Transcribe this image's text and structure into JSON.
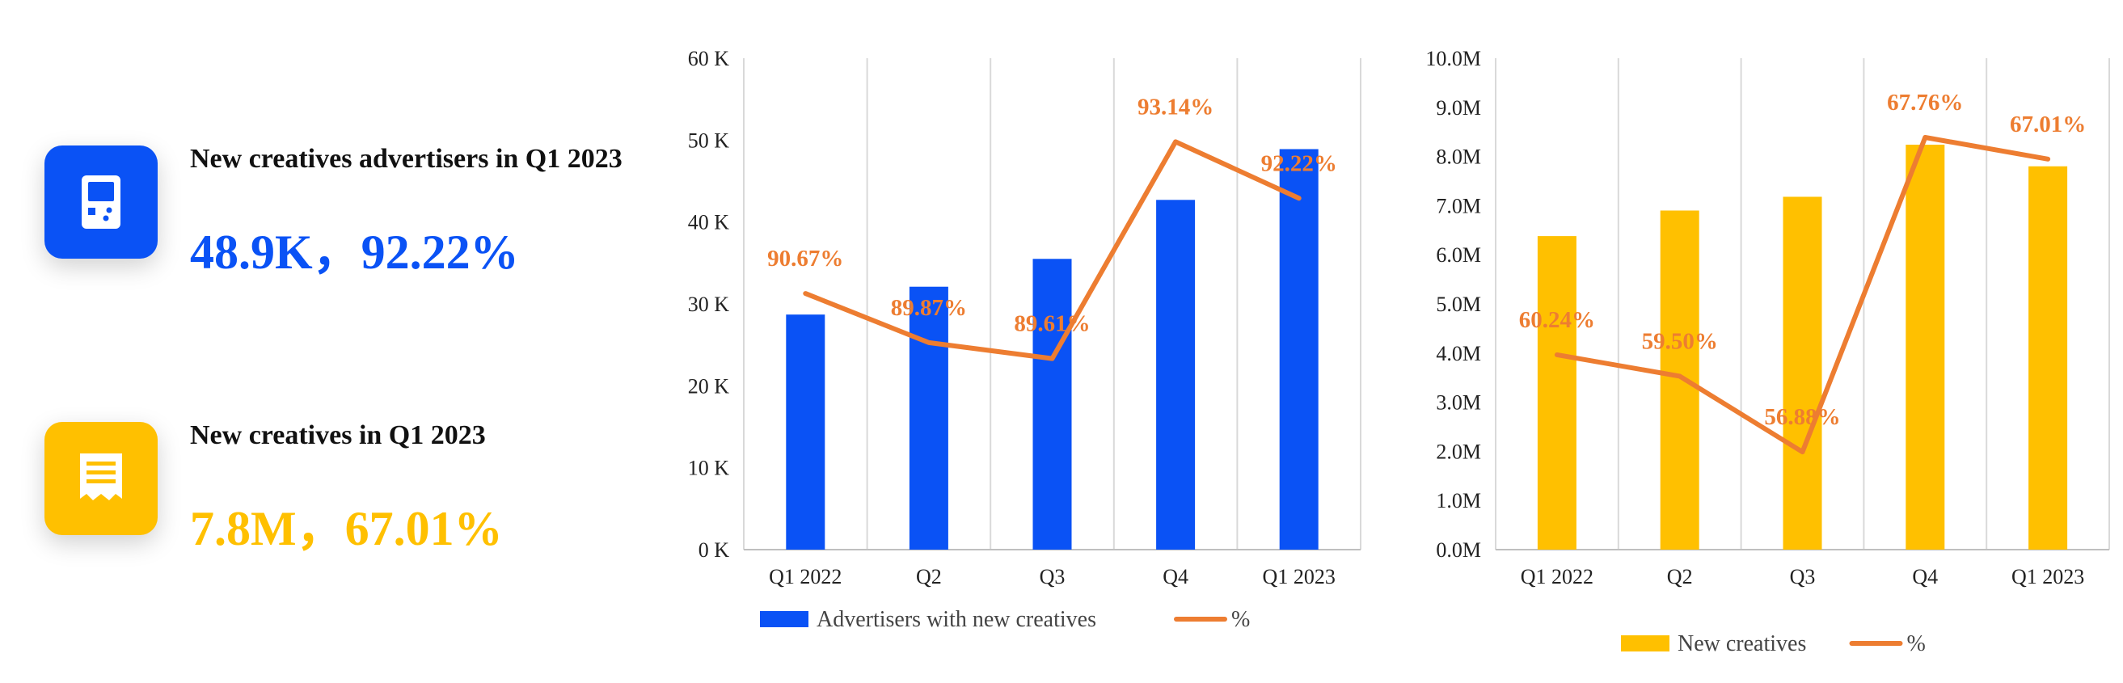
{
  "kpis": [
    {
      "title": "New creatives advertisers in Q1 2023",
      "value": "48.9K，92.22%",
      "color": "#0A52F5",
      "icon": "handheld-device-icon"
    },
    {
      "title": "New creatives in Q1 2023",
      "value": "7.8M，67.01%",
      "color": "#FFC000",
      "icon": "receipt-icon"
    }
  ],
  "chart_data": [
    {
      "type": "bar",
      "categories": [
        "Q1 2022",
        "Q2",
        "Q3",
        "Q4",
        "Q1 2023"
      ],
      "ylim": [
        0,
        60000
      ],
      "y_ticks": [
        "0 K",
        "10 K",
        "20 K",
        "30 K",
        "40 K",
        "50 K",
        "60 K"
      ],
      "grid": "vertical",
      "legend_position": "bottom",
      "series": [
        {
          "name": "Advertisers with new creatives",
          "type": "bar",
          "color": "#0A52F5",
          "values": [
            28700,
            32100,
            35500,
            42700,
            48900
          ]
        },
        {
          "name": "%",
          "type": "line",
          "color": "#ED7D31",
          "values": [
            90.67,
            89.87,
            89.61,
            93.14,
            92.22
          ],
          "labels": [
            "90.67%",
            "89.87%",
            "89.61%",
            "93.14%",
            "92.22%"
          ]
        }
      ]
    },
    {
      "type": "bar",
      "categories": [
        "Q1 2022",
        "Q2",
        "Q3",
        "Q4",
        "Q1 2023"
      ],
      "ylim": [
        0,
        10000000
      ],
      "y_ticks": [
        "0.0M",
        "1.0M",
        "2.0M",
        "3.0M",
        "4.0M",
        "5.0M",
        "6.0M",
        "7.0M",
        "8.0M",
        "9.0M",
        "10.0M"
      ],
      "grid": "vertical",
      "legend_position": "bottom",
      "series": [
        {
          "name": "New creatives",
          "type": "bar",
          "color": "#FFC000",
          "values": [
            6380000,
            6900000,
            7180000,
            8240000,
            7800000
          ]
        },
        {
          "name": "%",
          "type": "line",
          "color": "#ED7D31",
          "values": [
            60.24,
            59.5,
            56.88,
            67.76,
            67.01
          ],
          "labels": [
            "60.24%",
            "59.50%",
            "56.88%",
            "67.76%",
            "67.01%"
          ]
        }
      ]
    }
  ]
}
